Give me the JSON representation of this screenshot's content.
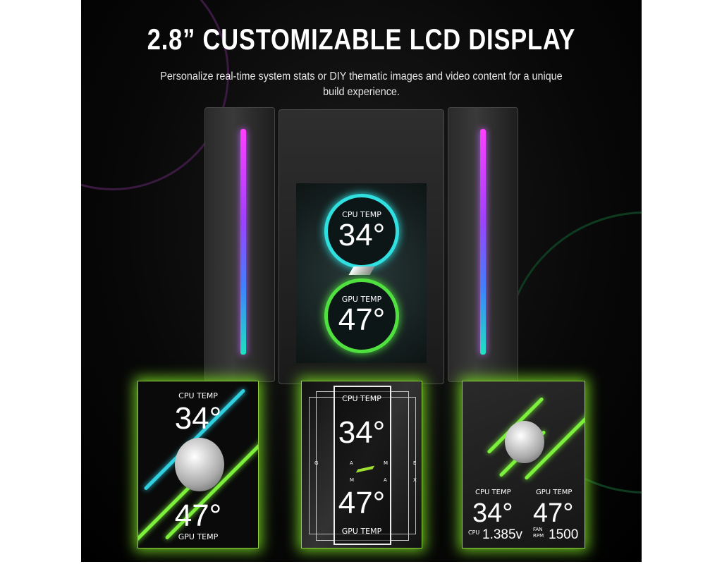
{
  "header": {
    "title": "2.8” CUSTOMIZABLE LCD DISPLAY",
    "subtitle_line1": "Personalize real-time system stats or DIY thematic images and video content for a unique",
    "subtitle_line2": "build experience."
  },
  "main_screen": {
    "cpu_label": "CPU TEMP",
    "cpu_value": "34°",
    "gpu_label": "GPU TEMP",
    "gpu_value": "47°"
  },
  "cards": [
    {
      "cpu_label": "CPU TEMP",
      "cpu_value": "34°",
      "gpu_label": "GPU TEMP",
      "gpu_value": "47°"
    },
    {
      "cpu_label": "CPU TEMP",
      "cpu_value": "34°",
      "gpu_label": "GPU TEMP",
      "gpu_value": "47°",
      "letters": [
        "G",
        "A",
        "M",
        "E",
        "M",
        "A",
        "X"
      ]
    },
    {
      "cpu_label": "CPU TEMP",
      "cpu_value": "34°",
      "gpu_label": "GPU TEMP",
      "gpu_value": "47°",
      "cpu_small": "CPU",
      "voltage": "1.385v",
      "fan_small": "FAN",
      "rpm_small": "RPM",
      "rpm": "1500"
    }
  ],
  "colors": {
    "accent_green": "#7cf03a",
    "ring_cyan": "#30e0e0",
    "ring_green": "#50e040",
    "rgb_pink": "#ff40ff"
  }
}
